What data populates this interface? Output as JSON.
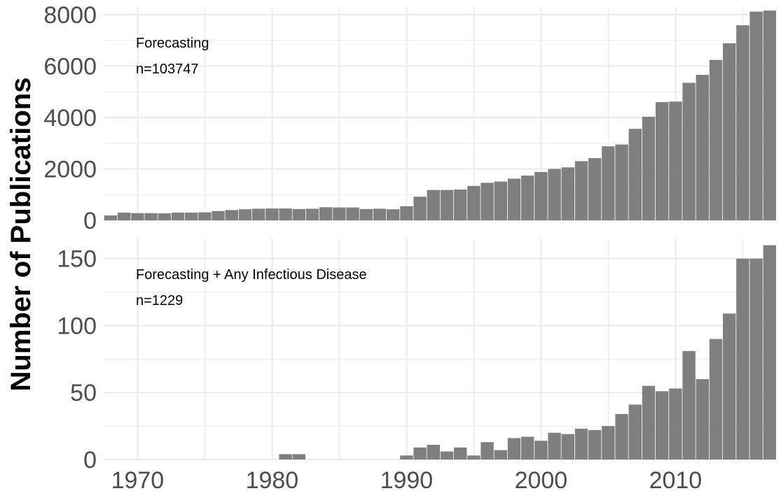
{
  "chart_data": {
    "type": "bar",
    "ylabel": "Number of Publications",
    "xlabel": "",
    "x_ticks": [
      1970,
      1980,
      1990,
      2000,
      2010
    ],
    "grid": true,
    "bar_color": "#7f7f7f",
    "grid_color": "#ebebeb",
    "panels": [
      {
        "annotation_title": "Forecasting",
        "annotation_n": "n=103747",
        "ylim": [
          0,
          8300
        ],
        "y_ticks": [
          0,
          2000,
          4000,
          6000,
          8000
        ],
        "years": [
          1968,
          1969,
          1970,
          1971,
          1972,
          1973,
          1974,
          1975,
          1976,
          1977,
          1978,
          1979,
          1980,
          1981,
          1982,
          1983,
          1984,
          1985,
          1986,
          1987,
          1988,
          1989,
          1990,
          1991,
          1992,
          1993,
          1994,
          1995,
          1996,
          1997,
          1998,
          1999,
          2000,
          2001,
          2002,
          2003,
          2004,
          2005,
          2006,
          2007,
          2008,
          2009,
          2010,
          2011,
          2012,
          2013,
          2014,
          2015,
          2016,
          2017
        ],
        "values": [
          190,
          300,
          280,
          280,
          270,
          300,
          300,
          310,
          360,
          400,
          430,
          450,
          460,
          460,
          440,
          450,
          510,
          500,
          500,
          440,
          450,
          430,
          550,
          920,
          1180,
          1180,
          1200,
          1340,
          1460,
          1510,
          1620,
          1740,
          1880,
          2000,
          2060,
          2300,
          2420,
          2880,
          2950,
          3560,
          4030,
          4600,
          4620,
          5350,
          5660,
          6240,
          6890,
          7590,
          8120,
          8160
        ]
      },
      {
        "annotation_title": "Forecasting + Any Infectious Disease",
        "annotation_n": "n=1229",
        "ylim": [
          0,
          165
        ],
        "y_ticks": [
          0,
          50,
          100,
          150
        ],
        "years": [
          1968,
          1969,
          1970,
          1971,
          1972,
          1973,
          1974,
          1975,
          1976,
          1977,
          1978,
          1979,
          1980,
          1981,
          1982,
          1983,
          1984,
          1985,
          1986,
          1987,
          1988,
          1989,
          1990,
          1991,
          1992,
          1993,
          1994,
          1995,
          1996,
          1997,
          1998,
          1999,
          2000,
          2001,
          2002,
          2003,
          2004,
          2005,
          2006,
          2007,
          2008,
          2009,
          2010,
          2011,
          2012,
          2013,
          2014,
          2015,
          2016,
          2017
        ],
        "values": [
          0,
          0,
          0,
          0,
          0,
          0,
          0,
          0,
          0,
          0,
          0,
          0,
          0,
          4,
          4,
          0,
          0,
          0,
          0,
          0,
          0,
          0,
          3,
          9,
          11,
          6,
          9,
          3,
          13,
          7,
          16,
          17,
          14,
          20,
          19,
          23,
          22,
          25,
          34,
          41,
          55,
          51,
          53,
          81,
          60,
          90,
          109,
          150,
          150,
          160
        ]
      }
    ]
  }
}
